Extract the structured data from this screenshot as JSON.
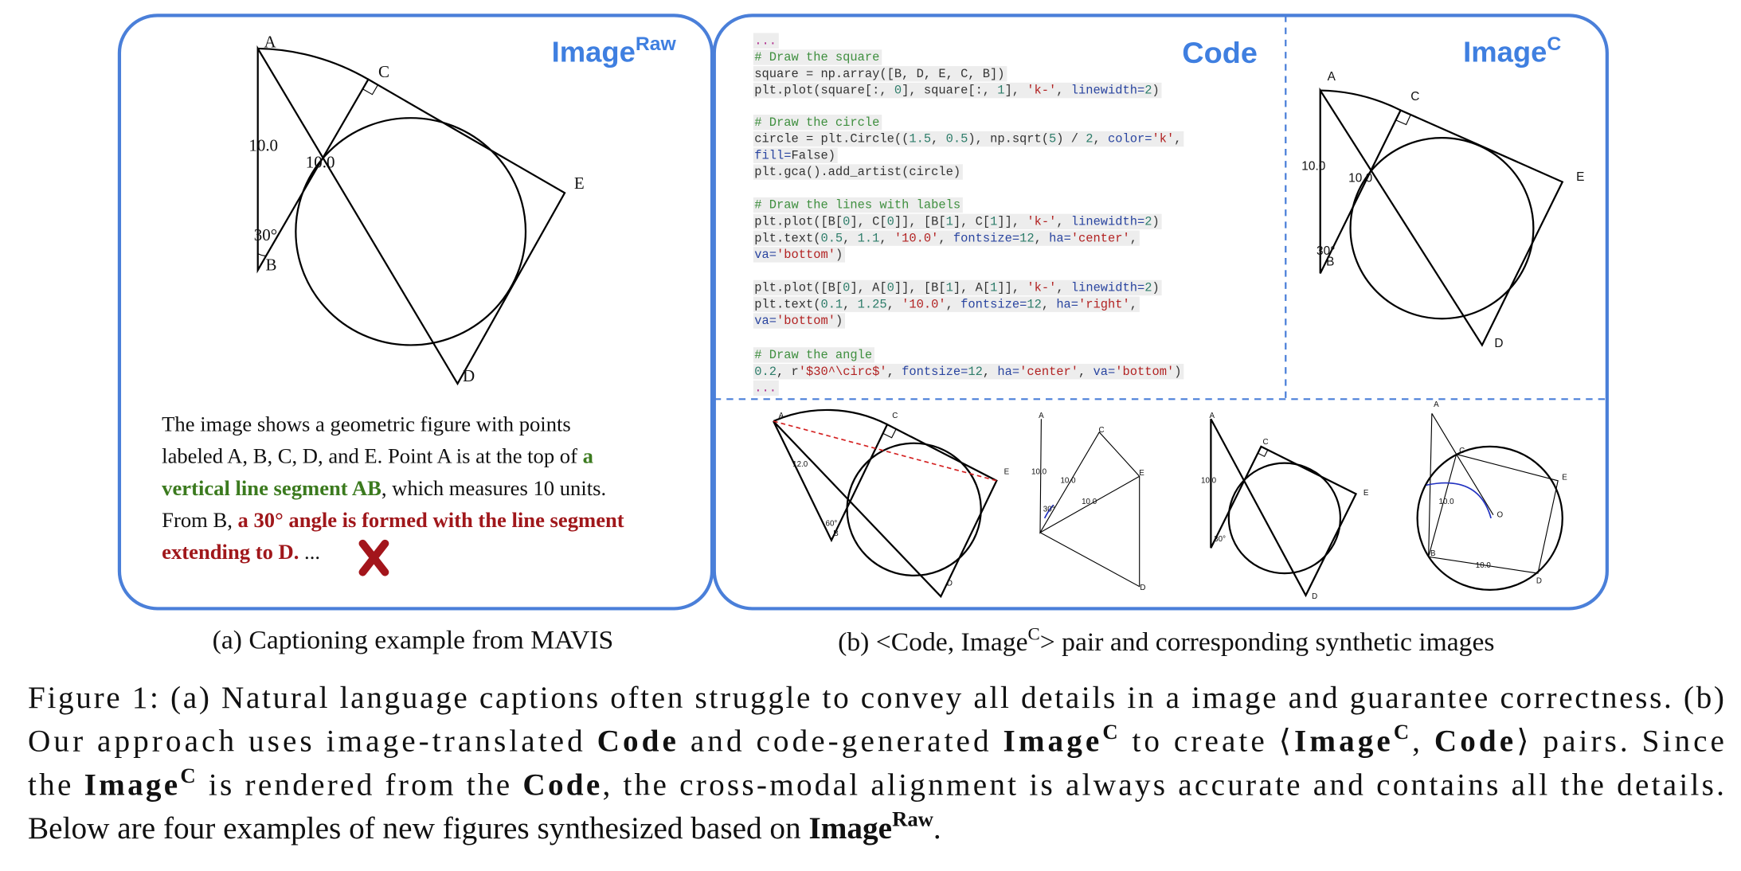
{
  "panel_a": {
    "title": [
      "Image",
      {
        "text": "Raw",
        "style": "sup"
      }
    ],
    "diagram_labels": [
      "A",
      "C",
      "10.0",
      "10.0",
      "E",
      "30°",
      "B",
      "D"
    ],
    "description": [
      [
        "The image shows a geometric figure with points"
      ],
      [
        "labeled A, B, C, D, and E. Point A is at the top of ",
        {
          "text": "a",
          "style": "green"
        }
      ],
      [
        {
          "text": "vertical line segment AB",
          "style": "green"
        },
        ", which measures 10 units."
      ],
      [
        "From B, ",
        {
          "text": "a 30° angle is formed with the line segment",
          "style": "red"
        }
      ],
      [
        {
          "text": "extending to D.",
          "style": "red"
        },
        " ..."
      ]
    ],
    "caption": [
      "(a) Captioning example from MAVIS"
    ]
  },
  "panel_b": {
    "code_title": [
      "Code"
    ],
    "code_blocks": [
      [
        "...",
        "# Draw the square",
        "square = np.array([B, D, E, C, B])",
        "plt.plot(square[:, 0], square[:, 1], 'k-', linewidth=2)"
      ],
      [
        "# Draw the circle",
        "circle = plt.Circle((1.5, 0.5), np.sqrt(5) / 2, color='k',",
        "fill=False)",
        "plt.gca().add_artist(circle)"
      ],
      [
        "# Draw the lines with labels",
        "plt.plot([B[0], C[0]], [B[1], C[1]], 'k-', linewidth=2)",
        "plt.text(0.5, 1.1, '10.0', fontsize=12, ha='center',",
        "va='bottom')"
      ],
      [
        "plt.plot([B[0], A[0]], [B[1], A[1]], 'k-', linewidth=2)",
        "plt.text(0.1, 1.25, '10.0', fontsize=12, ha='right',",
        "va='bottom')"
      ],
      [
        "# Draw the angle",
        "0.2, r'$30^\\circ$', fontsize=12, ha='center', va='bottom')",
        "..."
      ]
    ],
    "image_c_title": [
      "Image",
      {
        "text": "C",
        "style": "sup"
      }
    ],
    "image_c_labels": [
      "A",
      "C",
      "10.0",
      "10.0",
      "E",
      "30°",
      "B",
      "D"
    ],
    "synthetic_labels": [
      [
        "A",
        "C",
        "E",
        "12.0",
        "60°",
        "B",
        "D"
      ],
      [
        "A",
        "C",
        "E",
        "10.0",
        "10.0",
        "10.0",
        "30°",
        "D"
      ],
      [
        "A",
        "C",
        "E",
        "10.0",
        "30°",
        "D"
      ],
      [
        "A",
        "C",
        "E",
        "10.0",
        "O",
        "B",
        "10.0",
        "D"
      ]
    ],
    "caption": [
      "(b) <Code, Image",
      {
        "text": "C",
        "style": "sup"
      },
      "> pair and corresponding synthetic images"
    ]
  },
  "figure_caption": [
    [
      "Figure 1: (a) Natural language captions often struggle to convey all details in a image and guarantee correctness. (b)"
    ],
    [
      "Our approach uses image-translated ",
      {
        "text": "Code",
        "style": "bold"
      },
      " and code-generated ",
      {
        "text": "Image",
        "style": "bold"
      },
      {
        "text": "C",
        "style": "sup-bold"
      },
      " to create ⟨",
      {
        "text": "Image",
        "style": "bold"
      },
      {
        "text": "C",
        "style": "sup-bold"
      },
      ", ",
      {
        "text": "Code",
        "style": "bold"
      },
      "⟩ pairs. Since"
    ],
    [
      "the ",
      {
        "text": "Image",
        "style": "bold"
      },
      {
        "text": "C",
        "style": "sup-bold"
      },
      " is rendered from the ",
      {
        "text": "Code",
        "style": "bold"
      },
      ", the cross-modal alignment is always accurate and contains all the details."
    ],
    [
      "Below are four examples of new figures synthesized based on ",
      {
        "text": "Image",
        "style": "bold"
      },
      {
        "text": "Raw",
        "style": "sup-bold"
      },
      "."
    ]
  ]
}
